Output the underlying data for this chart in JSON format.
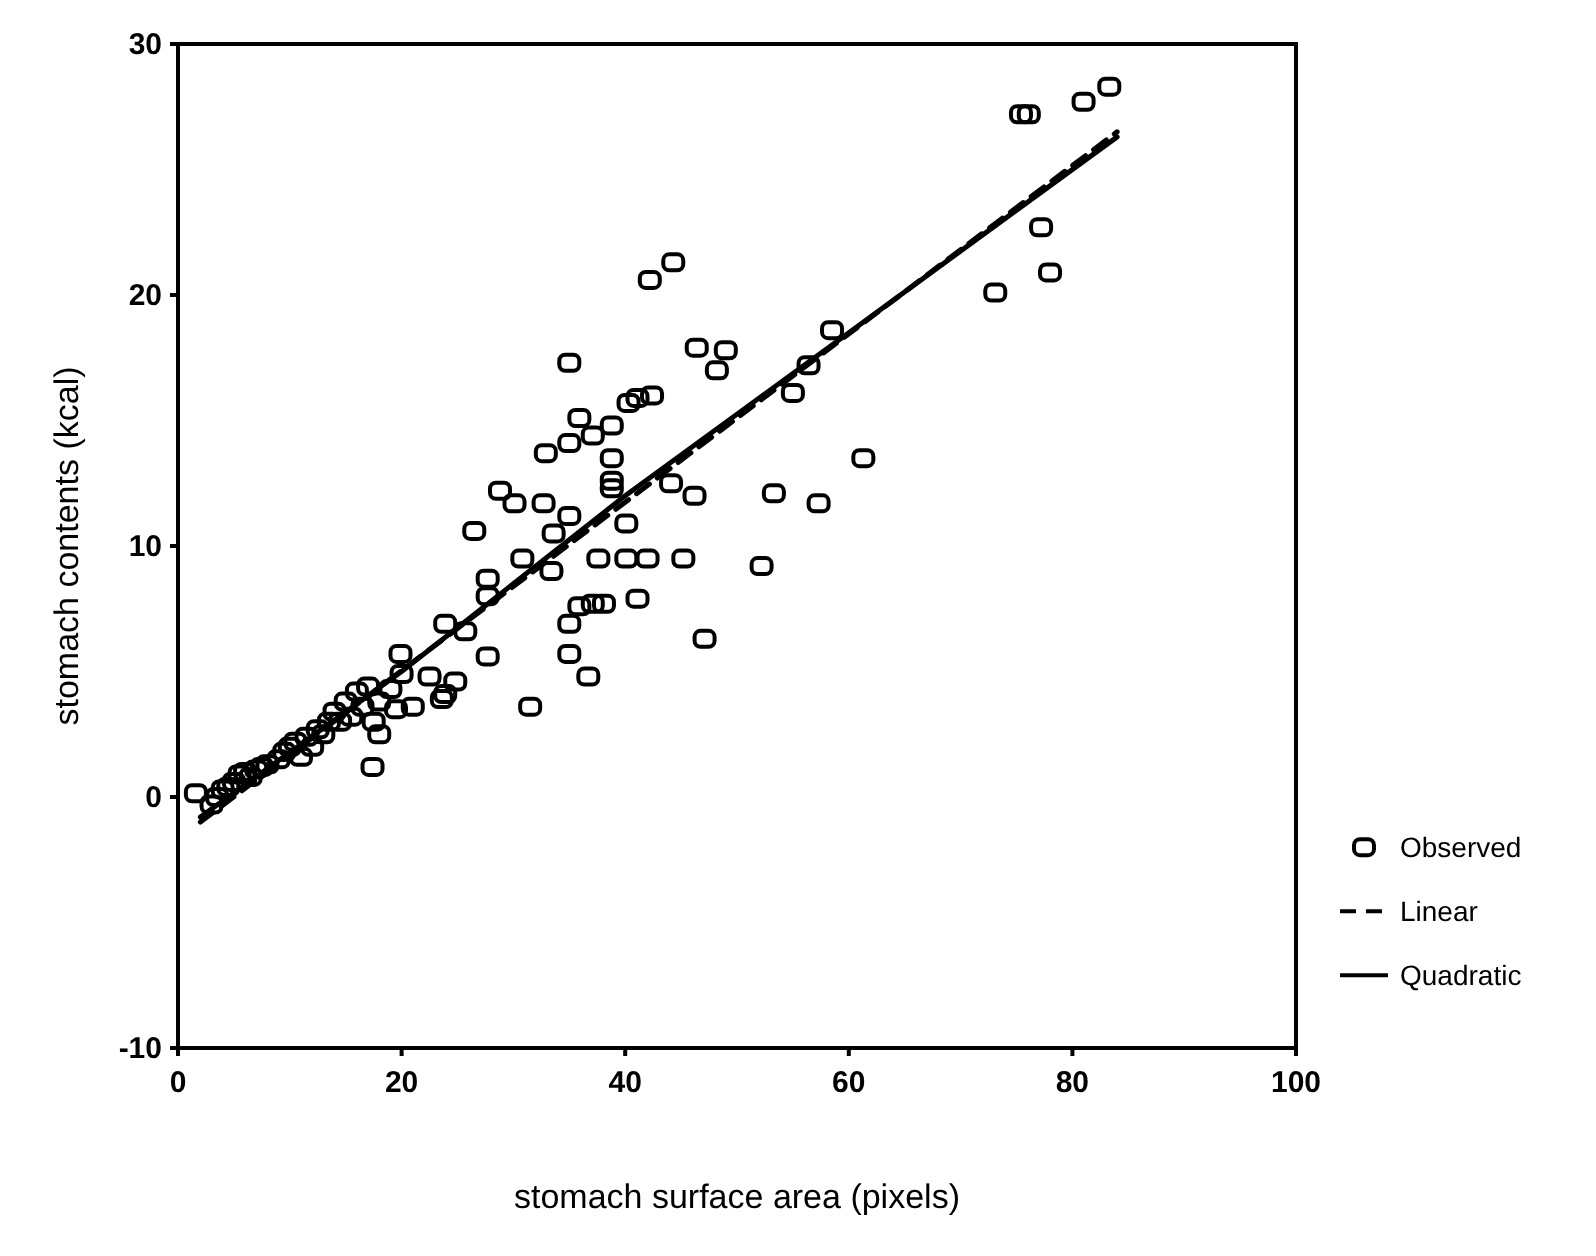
{
  "chart_data": {
    "type": "scatter",
    "xlabel": "stomach surface area (pixels)",
    "ylabel": "stomach contents  (kcal)",
    "xlim": [
      0,
      100
    ],
    "ylim": [
      -10,
      30
    ],
    "xticks": [
      0,
      20,
      40,
      60,
      80,
      100
    ],
    "yticks": [
      -10,
      0,
      10,
      20,
      30
    ],
    "grid": false,
    "legend": "right",
    "series": [
      {
        "name": "Observed",
        "color": "#000000",
        "marker": "square",
        "x": [
          1.6,
          3,
          3.5,
          4,
          4.5,
          5,
          5.5,
          6,
          6.5,
          7,
          7.5,
          8,
          9,
          9.5,
          10,
          10.5,
          11,
          11.5,
          12,
          12.5,
          13,
          13.5,
          14,
          14.5,
          15,
          15.5,
          16,
          16.5,
          17,
          17.4,
          17.5,
          18,
          18,
          19,
          19.5,
          19.9,
          20,
          21,
          22.5,
          23.6,
          23.9,
          23.9,
          24.8,
          25.7,
          26.5,
          27.7,
          27.7,
          27.7,
          28.8,
          30.1,
          30.8,
          31.5,
          32.7,
          32.9,
          33.4,
          33.6,
          35,
          35,
          35,
          35,
          35,
          35.9,
          35.9,
          36.7,
          37.1,
          37.1,
          37.6,
          38.1,
          38.8,
          38.8,
          38.8,
          38.8,
          40.1,
          40.1,
          40.3,
          41.1,
          41.1,
          42,
          42.2,
          42.4,
          44.1,
          44.3,
          45.2,
          46.2,
          46.4,
          47.1,
          48.2,
          49,
          52.2,
          53.3,
          55,
          56.4,
          57.3,
          58.5,
          61.3,
          73.1,
          75.4,
          76.1,
          77.2,
          78,
          81,
          83.3
        ],
        "values": [
          0.15,
          -0.3,
          0,
          0.3,
          0.4,
          0.6,
          0.9,
          1,
          0.8,
          1.1,
          1.2,
          1.3,
          1.5,
          1.8,
          2,
          2.2,
          1.6,
          2.4,
          2,
          2.7,
          2.5,
          3,
          3.4,
          3,
          3.8,
          3.2,
          4.2,
          3.6,
          4.4,
          1.2,
          3,
          3.8,
          2.5,
          4.3,
          3.5,
          5.7,
          4.9,
          3.6,
          4.8,
          3.9,
          4.1,
          6.9,
          4.6,
          6.6,
          10.6,
          5.6,
          8.7,
          8,
          12.2,
          11.7,
          9.5,
          3.6,
          11.7,
          13.7,
          9,
          10.5,
          17.3,
          14.1,
          11.2,
          5.7,
          6.9,
          15.1,
          7.6,
          4.8,
          14.4,
          7.7,
          9.5,
          7.7,
          14.8,
          13.5,
          12.6,
          12.3,
          10.9,
          9.5,
          15.7,
          15.9,
          7.9,
          9.5,
          20.6,
          16,
          12.5,
          21.3,
          9.5,
          12,
          17.9,
          6.3,
          17,
          17.8,
          9.2,
          12.1,
          16.1,
          17.2,
          11.7,
          18.6,
          13.5,
          20.1,
          27.2,
          27.2,
          22.7,
          20.9,
          27.7,
          28.3
        ]
      },
      {
        "name": "Linear",
        "type": "line",
        "color": "#000000",
        "line_style": "dashed",
        "marker": "none",
        "x": [
          2,
          84
        ],
        "values": [
          -1,
          26.5
        ]
      },
      {
        "name": "Quadratic",
        "type": "line",
        "color": "#000000",
        "line_style": "solid",
        "marker": "none",
        "x": [
          2,
          20,
          40,
          60,
          84
        ],
        "values": [
          -0.8,
          5,
          12,
          18.5,
          26.3
        ]
      }
    ]
  }
}
